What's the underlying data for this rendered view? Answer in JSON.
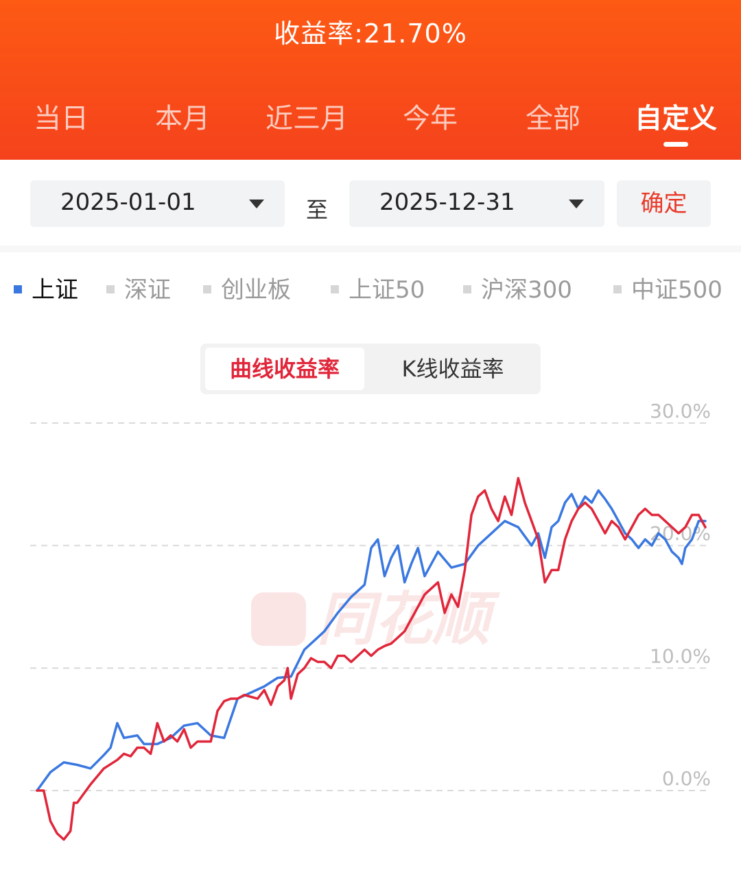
{
  "header": {
    "yield_title": "收益率:21.70%",
    "tabs": [
      "当日",
      "本月",
      "近三月",
      "今年",
      "全部",
      "自定义"
    ],
    "active_tab": "自定义"
  },
  "date_range": {
    "start": "2025-01-01",
    "separator": "至",
    "end": "2025-12-31",
    "confirm_label": "确定"
  },
  "index_tabs": {
    "items": [
      "上证",
      "深证",
      "创业板",
      "上证50",
      "沪深300",
      "中证500"
    ],
    "active": "上证"
  },
  "chart_mode": {
    "options": [
      "曲线收益率",
      "K线收益率"
    ],
    "active": "曲线收益率"
  },
  "watermark": "同花顺",
  "colors": {
    "header_bg": "#f94e18",
    "confirm_text": "#e83a2a",
    "active_index_marker": "#3a78e0",
    "active_mode_text": "#e0263a"
  },
  "chart_data": {
    "type": "line",
    "ylim": [
      0,
      30
    ],
    "y_ticks": [
      {
        "value": 0,
        "label": "0.0%"
      },
      {
        "value": 10,
        "label": "10.0%"
      },
      {
        "value": 20,
        "label": "20.0%"
      },
      {
        "value": 30,
        "label": "30.0%"
      }
    ],
    "grid": true,
    "x_range": [
      0,
      100
    ],
    "series": [
      {
        "color": "#3a78e0",
        "points": [
          [
            0,
            0
          ],
          [
            2,
            1.5
          ],
          [
            4,
            2.3
          ],
          [
            6,
            2.1
          ],
          [
            8,
            1.8
          ],
          [
            10,
            2.9
          ],
          [
            11,
            3.5
          ],
          [
            12,
            5.5
          ],
          [
            13,
            4.3
          ],
          [
            15,
            4.5
          ],
          [
            16,
            3.8
          ],
          [
            18,
            3.8
          ],
          [
            20,
            4.3
          ],
          [
            22,
            5.3
          ],
          [
            24,
            5.5
          ],
          [
            26,
            4.5
          ],
          [
            28,
            4.3
          ],
          [
            30,
            7.5
          ],
          [
            32,
            8.0
          ],
          [
            34,
            8.5
          ],
          [
            36,
            9.2
          ],
          [
            38,
            9.3
          ],
          [
            40,
            11.5
          ],
          [
            42,
            12.5
          ],
          [
            43,
            13.0
          ],
          [
            45,
            14.5
          ],
          [
            47,
            15.8
          ],
          [
            49,
            16.8
          ],
          [
            50,
            19.8
          ],
          [
            51,
            20.5
          ],
          [
            52,
            17.5
          ],
          [
            53,
            19.0
          ],
          [
            54,
            20.0
          ],
          [
            55,
            17.0
          ],
          [
            56,
            18.5
          ],
          [
            57,
            19.8
          ],
          [
            58,
            17.5
          ],
          [
            60,
            19.5
          ],
          [
            62,
            18.2
          ],
          [
            64,
            18.5
          ],
          [
            66,
            20.0
          ],
          [
            68,
            21.0
          ],
          [
            70,
            22.0
          ],
          [
            72,
            21.5
          ],
          [
            74,
            20.0
          ],
          [
            75,
            21.0
          ],
          [
            76,
            19.0
          ],
          [
            77,
            21.5
          ],
          [
            78,
            22.0
          ],
          [
            79,
            23.5
          ],
          [
            80,
            24.2
          ],
          [
            81,
            23.0
          ],
          [
            82,
            24.0
          ],
          [
            83,
            23.5
          ],
          [
            84,
            24.5
          ],
          [
            85,
            23.8
          ],
          [
            86,
            23.0
          ],
          [
            87,
            22.0
          ],
          [
            88,
            21.0
          ],
          [
            89,
            20.5
          ],
          [
            90,
            19.8
          ],
          [
            91,
            20.5
          ],
          [
            92,
            20.0
          ],
          [
            93,
            21.0
          ],
          [
            94,
            20.5
          ],
          [
            95,
            19.5
          ],
          [
            96,
            19.0
          ],
          [
            96.5,
            18.5
          ],
          [
            97,
            19.8
          ],
          [
            98,
            20.5
          ],
          [
            99,
            22.0
          ],
          [
            100,
            22.0
          ]
        ]
      },
      {
        "color": "#e0263a",
        "points": [
          [
            0,
            0
          ],
          [
            1,
            0
          ],
          [
            2,
            -2.5
          ],
          [
            3,
            -3.5
          ],
          [
            4,
            -4.0
          ],
          [
            5,
            -3.3
          ],
          [
            5.5,
            -1.0
          ],
          [
            6,
            -1.0
          ],
          [
            8,
            0.5
          ],
          [
            10,
            1.8
          ],
          [
            12,
            2.5
          ],
          [
            13,
            3.0
          ],
          [
            14,
            2.8
          ],
          [
            15,
            3.5
          ],
          [
            16,
            3.5
          ],
          [
            17,
            3.0
          ],
          [
            18,
            5.5
          ],
          [
            19,
            4.0
          ],
          [
            20,
            4.5
          ],
          [
            21,
            4.0
          ],
          [
            22,
            5.0
          ],
          [
            23,
            3.5
          ],
          [
            24,
            4.0
          ],
          [
            26,
            4.0
          ],
          [
            27,
            6.5
          ],
          [
            28,
            7.3
          ],
          [
            29,
            7.5
          ],
          [
            30,
            7.5
          ],
          [
            31,
            7.8
          ],
          [
            33,
            7.5
          ],
          [
            34,
            8.2
          ],
          [
            35,
            7.0
          ],
          [
            36,
            8.5
          ],
          [
            37,
            9.0
          ],
          [
            37.5,
            10.0
          ],
          [
            38,
            7.5
          ],
          [
            39,
            9.5
          ],
          [
            40,
            10.0
          ],
          [
            41,
            10.8
          ],
          [
            42,
            10.5
          ],
          [
            43,
            10.5
          ],
          [
            44,
            10.0
          ],
          [
            45,
            11.0
          ],
          [
            46,
            11.0
          ],
          [
            47,
            10.5
          ],
          [
            48,
            11.0
          ],
          [
            49,
            11.5
          ],
          [
            50,
            11.0
          ],
          [
            51,
            11.5
          ],
          [
            52,
            11.8
          ],
          [
            53,
            12.0
          ],
          [
            54,
            12.5
          ],
          [
            55,
            13.0
          ],
          [
            56,
            14.0
          ],
          [
            57,
            15.0
          ],
          [
            58,
            16.0
          ],
          [
            59,
            16.5
          ],
          [
            60,
            17.0
          ],
          [
            61,
            14.5
          ],
          [
            62,
            16.0
          ],
          [
            63,
            15.0
          ],
          [
            64,
            18.0
          ],
          [
            65,
            22.5
          ],
          [
            66,
            24.0
          ],
          [
            67,
            24.5
          ],
          [
            68,
            23.0
          ],
          [
            69,
            22.0
          ],
          [
            70,
            24.0
          ],
          [
            71,
            22.5
          ],
          [
            72,
            25.5
          ],
          [
            73,
            23.5
          ],
          [
            74,
            22.0
          ],
          [
            75,
            20.5
          ],
          [
            76,
            17.0
          ],
          [
            77,
            18.0
          ],
          [
            78,
            18.0
          ],
          [
            79,
            20.5
          ],
          [
            80,
            22.0
          ],
          [
            81,
            23.0
          ],
          [
            82,
            23.5
          ],
          [
            83,
            23.0
          ],
          [
            84,
            22.0
          ],
          [
            85,
            21.0
          ],
          [
            86,
            22.0
          ],
          [
            87,
            21.5
          ],
          [
            88,
            20.5
          ],
          [
            89,
            21.5
          ],
          [
            90,
            22.5
          ],
          [
            91,
            23.0
          ],
          [
            92,
            22.5
          ],
          [
            93,
            22.5
          ],
          [
            94,
            22.0
          ],
          [
            95,
            21.5
          ],
          [
            96,
            21.0
          ],
          [
            97,
            21.5
          ],
          [
            98,
            22.5
          ],
          [
            99,
            22.5
          ],
          [
            100,
            21.5
          ]
        ]
      }
    ]
  }
}
